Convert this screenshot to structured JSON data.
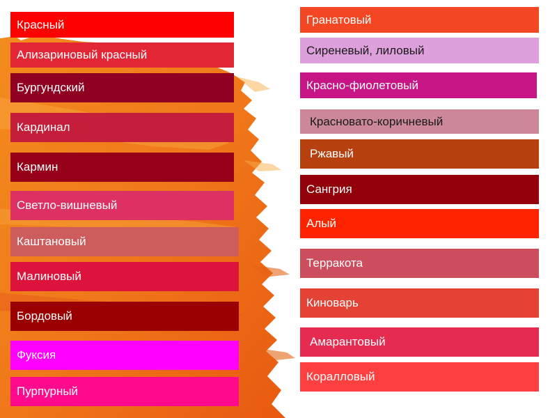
{
  "left_column": [
    {
      "label": "Красный",
      "color": "#FF0000"
    },
    {
      "label": "Ализариновый красный",
      "color": "#E32636"
    },
    {
      "label": "Бургундский",
      "color": "#900020"
    },
    {
      "label": "Кардинал",
      "color": "#C41E3A"
    },
    {
      "label": "Кармин",
      "color": "#960018"
    },
    {
      "label": "Светло-вишневый",
      "color": "#DE3163"
    },
    {
      "label": "Каштановый",
      "color": "#CD5C5C"
    },
    {
      "label": "Малиновый",
      "color": "#DC143C"
    },
    {
      "label": "Бордовый",
      "color": "#9B0000"
    },
    {
      "label": "Фуксия",
      "color": "#FF00FF"
    },
    {
      "label": "Пурпурный",
      "color": "#FF0A8C"
    }
  ],
  "right_column": [
    {
      "label": "Гранатовый",
      "color": "#F34723"
    },
    {
      "label": "Сиреневый, лиловый",
      "color": "#DDA0DD"
    },
    {
      "label": "Красно-фиолетовый",
      "color": "#C71585"
    },
    {
      "label": "Красновато-коричневый",
      "color": "#CC8899"
    },
    {
      "label": "Ржавый",
      "color": "#B7410E"
    },
    {
      "label": "Сангрия",
      "color": "#92000A"
    },
    {
      "label": "Алый",
      "color": "#FF2400"
    },
    {
      "label": "Терракота",
      "color": "#CC4E5C"
    },
    {
      "label": "Киноварь",
      "color": "#E34234"
    },
    {
      "label": "Амарантовый",
      "color": "#E52B50"
    },
    {
      "label": "Коралловый",
      "color": "#FF4040"
    }
  ]
}
